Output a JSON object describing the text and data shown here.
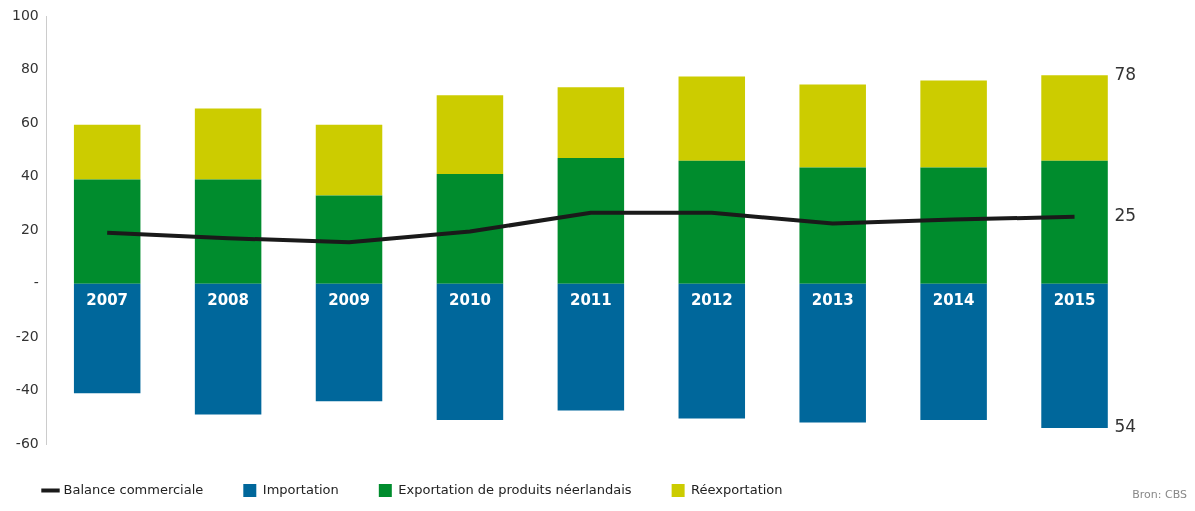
{
  "chart_data": {
    "type": "bar",
    "stacked": true,
    "categories": [
      "2007",
      "2008",
      "2009",
      "2010",
      "2011",
      "2012",
      "2013",
      "2014",
      "2015"
    ],
    "series": [
      {
        "name": "Importation",
        "color": "#00679b",
        "values": [
          -41,
          -49,
          -44,
          -51,
          -47.5,
          -50.5,
          -52,
          -51,
          -54
        ]
      },
      {
        "name": "Exportation de produits néerlandais",
        "color": "#008c2d",
        "values": [
          39,
          39,
          33,
          41,
          47,
          46,
          43.5,
          43.5,
          46
        ]
      },
      {
        "name": "Réexportation",
        "color": "#cccc00",
        "values": [
          20.5,
          26.5,
          26.5,
          29.5,
          26.5,
          31.5,
          31,
          32.5,
          32
        ]
      },
      {
        "name": "Balance commerciale",
        "type": "line",
        "color": "#1a1a1a",
        "values": [
          19,
          17,
          15.5,
          19.5,
          26.5,
          26.5,
          22.5,
          24,
          25
        ]
      }
    ],
    "ylim": [
      -60,
      100
    ],
    "yticks": [
      -60,
      -40,
      -20,
      {
        "value": 0,
        "label": "-"
      },
      20,
      40,
      60,
      80,
      100
    ],
    "grid": false,
    "legend": "bottom",
    "marker": "none",
    "annotations": [
      {
        "text": "78",
        "x": "2015",
        "y": 78
      },
      {
        "text": "25",
        "x": "2015",
        "y": 25
      },
      {
        "text": "54",
        "x": "2015",
        "y": -54
      },
      "Bron: CBS"
    ]
  }
}
